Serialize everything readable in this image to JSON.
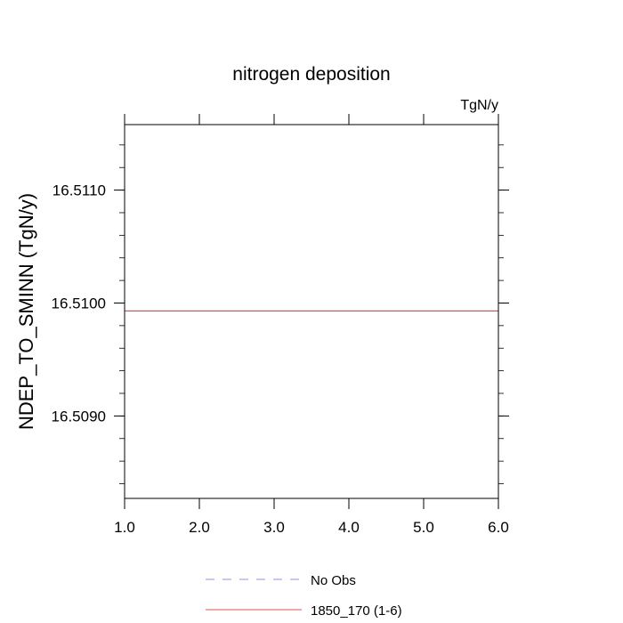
{
  "chart_data": {
    "type": "line",
    "title": "nitrogen deposition",
    "units_label": "TgN/y",
    "xlabel": "",
    "ylabel": "NDEP_TO_SMINN  (TgN/y)",
    "xlim": [
      1.0,
      6.0
    ],
    "ylim": [
      16.50827,
      16.51158
    ],
    "x_ticks": [
      1.0,
      2.0,
      3.0,
      4.0,
      5.0,
      6.0
    ],
    "x_tick_labels": [
      "1.0",
      "2.0",
      "3.0",
      "4.0",
      "5.0",
      "6.0"
    ],
    "y_ticks": [
      16.509,
      16.51,
      16.511
    ],
    "y_tick_labels": [
      "16.5090",
      "16.5100",
      "16.5110"
    ],
    "y_minor_step": 0.0002,
    "series": [
      {
        "name": "1850_170 (1-6)",
        "color": "#e05050",
        "style": "solid",
        "x": [
          1.0,
          2.0,
          3.0,
          4.0,
          5.0,
          6.0
        ],
        "y": [
          16.50993,
          16.50993,
          16.50993,
          16.50993,
          16.50993,
          16.50993
        ]
      }
    ],
    "legend": {
      "placement": "bottom-center",
      "entries": [
        {
          "label": "No Obs",
          "color": "#9090e0",
          "style": "dashed"
        },
        {
          "label": "1850_170 (1-6)",
          "color": "#e05050",
          "style": "solid"
        }
      ]
    },
    "grid": false
  }
}
